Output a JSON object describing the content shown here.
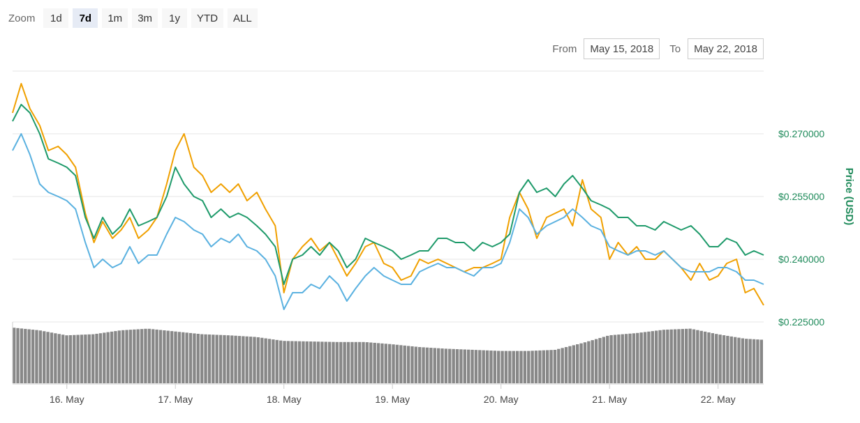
{
  "zoom": {
    "label": "Zoom",
    "buttons": [
      "1d",
      "7d",
      "1m",
      "3m",
      "1y",
      "YTD",
      "ALL"
    ],
    "selected": "7d"
  },
  "range": {
    "from_label": "From",
    "from_value": "May 15, 2018",
    "to_label": "To",
    "to_value": "May 22, 2018"
  },
  "chart_data": {
    "type": "line",
    "ylabel": "Price (USD)",
    "y_ticks": [
      "$0.225000",
      "$0.240000",
      "$0.255000",
      "$0.270000"
    ],
    "y_tick_values": [
      0.225,
      0.24,
      0.255,
      0.27
    ],
    "ylim": [
      0.225,
      0.285
    ],
    "xlim": [
      "May 15, 2018 12:00",
      "May 22, 2018 10:00"
    ],
    "x_ticks": [
      "16. May",
      "17. May",
      "18. May",
      "19. May",
      "20. May",
      "21. May",
      "22. May"
    ],
    "x_tick_days": [
      1,
      2,
      3,
      4,
      5,
      6,
      7
    ],
    "grid": true,
    "legend": "none",
    "series": [
      {
        "color": "#f0a000",
        "x_days": [
          0.5,
          0.58,
          0.66,
          0.75,
          0.83,
          0.92,
          1.0,
          1.08,
          1.17,
          1.25,
          1.33,
          1.42,
          1.5,
          1.58,
          1.66,
          1.75,
          1.83,
          1.92,
          2.0,
          2.08,
          2.17,
          2.25,
          2.33,
          2.42,
          2.5,
          2.58,
          2.66,
          2.75,
          2.83,
          2.92,
          3.0,
          3.08,
          3.17,
          3.25,
          3.33,
          3.42,
          3.5,
          3.58,
          3.66,
          3.75,
          3.83,
          3.92,
          4.0,
          4.08,
          4.17,
          4.25,
          4.33,
          4.42,
          4.5,
          4.58,
          4.66,
          4.75,
          4.83,
          4.92,
          5.0,
          5.08,
          5.17,
          5.25,
          5.33,
          5.42,
          5.5,
          5.58,
          5.66,
          5.75,
          5.83,
          5.92,
          6.0,
          6.08,
          6.17,
          6.25,
          6.33,
          6.42,
          6.5,
          6.58,
          6.66,
          6.75,
          6.83,
          6.92,
          7.0,
          7.08,
          7.17,
          7.25,
          7.33,
          7.42
        ],
        "values": [
          0.275,
          0.282,
          0.276,
          0.272,
          0.266,
          0.267,
          0.265,
          0.262,
          0.251,
          0.244,
          0.249,
          0.245,
          0.247,
          0.25,
          0.245,
          0.247,
          0.25,
          0.258,
          0.266,
          0.27,
          0.262,
          0.26,
          0.256,
          0.258,
          0.256,
          0.258,
          0.254,
          0.256,
          0.252,
          0.248,
          0.232,
          0.24,
          0.243,
          0.245,
          0.242,
          0.244,
          0.24,
          0.236,
          0.239,
          0.243,
          0.244,
          0.239,
          0.238,
          0.235,
          0.236,
          0.24,
          0.239,
          0.24,
          0.239,
          0.238,
          0.237,
          0.238,
          0.238,
          0.239,
          0.24,
          0.25,
          0.256,
          0.252,
          0.245,
          0.25,
          0.251,
          0.252,
          0.248,
          0.259,
          0.252,
          0.25,
          0.24,
          0.244,
          0.241,
          0.243,
          0.24,
          0.24,
          0.242,
          0.24,
          0.238,
          0.235,
          0.239,
          0.235,
          0.236,
          0.239,
          0.24,
          0.232,
          0.233,
          0.229
        ]
      },
      {
        "color": "#1e9a6a",
        "x_days": [
          0.5,
          0.58,
          0.66,
          0.75,
          0.83,
          0.92,
          1.0,
          1.08,
          1.17,
          1.25,
          1.33,
          1.42,
          1.5,
          1.58,
          1.66,
          1.75,
          1.83,
          1.92,
          2.0,
          2.08,
          2.17,
          2.25,
          2.33,
          2.42,
          2.5,
          2.58,
          2.66,
          2.75,
          2.83,
          2.92,
          3.0,
          3.08,
          3.17,
          3.25,
          3.33,
          3.42,
          3.5,
          3.58,
          3.66,
          3.75,
          3.83,
          3.92,
          4.0,
          4.08,
          4.17,
          4.25,
          4.33,
          4.42,
          4.5,
          4.58,
          4.66,
          4.75,
          4.83,
          4.92,
          5.0,
          5.08,
          5.17,
          5.25,
          5.33,
          5.42,
          5.5,
          5.58,
          5.66,
          5.75,
          5.83,
          5.92,
          6.0,
          6.08,
          6.17,
          6.25,
          6.33,
          6.42,
          6.5,
          6.58,
          6.66,
          6.75,
          6.83,
          6.92,
          7.0,
          7.08,
          7.17,
          7.25,
          7.33,
          7.42
        ],
        "values": [
          0.273,
          0.277,
          0.275,
          0.27,
          0.264,
          0.263,
          0.262,
          0.26,
          0.25,
          0.245,
          0.25,
          0.246,
          0.248,
          0.252,
          0.248,
          0.249,
          0.25,
          0.255,
          0.262,
          0.258,
          0.255,
          0.254,
          0.25,
          0.252,
          0.25,
          0.251,
          0.25,
          0.248,
          0.246,
          0.243,
          0.234,
          0.24,
          0.241,
          0.243,
          0.241,
          0.244,
          0.242,
          0.238,
          0.24,
          0.245,
          0.244,
          0.243,
          0.242,
          0.24,
          0.241,
          0.242,
          0.242,
          0.245,
          0.245,
          0.244,
          0.244,
          0.242,
          0.244,
          0.243,
          0.244,
          0.246,
          0.256,
          0.259,
          0.256,
          0.257,
          0.255,
          0.258,
          0.26,
          0.257,
          0.254,
          0.253,
          0.252,
          0.25,
          0.25,
          0.248,
          0.248,
          0.247,
          0.249,
          0.248,
          0.247,
          0.248,
          0.246,
          0.243,
          0.243,
          0.245,
          0.244,
          0.241,
          0.242,
          0.241
        ]
      },
      {
        "color": "#5ab1e0",
        "x_days": [
          0.5,
          0.58,
          0.66,
          0.75,
          0.83,
          0.92,
          1.0,
          1.08,
          1.17,
          1.25,
          1.33,
          1.42,
          1.5,
          1.58,
          1.66,
          1.75,
          1.83,
          1.92,
          2.0,
          2.08,
          2.17,
          2.25,
          2.33,
          2.42,
          2.5,
          2.58,
          2.66,
          2.75,
          2.83,
          2.92,
          3.0,
          3.08,
          3.17,
          3.25,
          3.33,
          3.42,
          3.5,
          3.58,
          3.66,
          3.75,
          3.83,
          3.92,
          4.0,
          4.08,
          4.17,
          4.25,
          4.33,
          4.42,
          4.5,
          4.58,
          4.66,
          4.75,
          4.83,
          4.92,
          5.0,
          5.08,
          5.17,
          5.25,
          5.33,
          5.42,
          5.5,
          5.58,
          5.66,
          5.75,
          5.83,
          5.92,
          6.0,
          6.08,
          6.17,
          6.25,
          6.33,
          6.42,
          6.5,
          6.58,
          6.66,
          6.75,
          6.83,
          6.92,
          7.0,
          7.08,
          7.17,
          7.25,
          7.33,
          7.42
        ],
        "values": [
          0.266,
          0.27,
          0.265,
          0.258,
          0.256,
          0.255,
          0.254,
          0.252,
          0.244,
          0.238,
          0.24,
          0.238,
          0.239,
          0.243,
          0.239,
          0.241,
          0.241,
          0.246,
          0.25,
          0.249,
          0.247,
          0.246,
          0.243,
          0.245,
          0.244,
          0.246,
          0.243,
          0.242,
          0.24,
          0.236,
          0.228,
          0.232,
          0.232,
          0.234,
          0.233,
          0.236,
          0.234,
          0.23,
          0.233,
          0.236,
          0.238,
          0.236,
          0.235,
          0.234,
          0.234,
          0.237,
          0.238,
          0.239,
          0.238,
          0.238,
          0.237,
          0.236,
          0.238,
          0.238,
          0.239,
          0.244,
          0.252,
          0.25,
          0.246,
          0.248,
          0.249,
          0.25,
          0.252,
          0.25,
          0.248,
          0.247,
          0.243,
          0.242,
          0.241,
          0.242,
          0.242,
          0.241,
          0.242,
          0.24,
          0.238,
          0.237,
          0.237,
          0.237,
          0.238,
          0.238,
          0.237,
          0.235,
          0.235,
          0.234
        ]
      }
    ],
    "volume": {
      "color": "#888888",
      "x_days": [
        0.5,
        0.75,
        1.0,
        1.25,
        1.5,
        1.75,
        2.0,
        2.25,
        2.5,
        2.75,
        3.0,
        3.25,
        3.5,
        3.75,
        4.0,
        4.25,
        4.5,
        4.75,
        5.0,
        5.25,
        5.5,
        5.75,
        6.0,
        6.25,
        6.5,
        6.75,
        7.0,
        7.25,
        7.42
      ],
      "values": [
        1.0,
        0.95,
        0.86,
        0.88,
        0.95,
        0.98,
        0.93,
        0.88,
        0.86,
        0.83,
        0.76,
        0.75,
        0.74,
        0.74,
        0.7,
        0.65,
        0.62,
        0.6,
        0.58,
        0.58,
        0.6,
        0.72,
        0.86,
        0.9,
        0.96,
        0.98,
        0.88,
        0.8,
        0.78
      ]
    }
  }
}
